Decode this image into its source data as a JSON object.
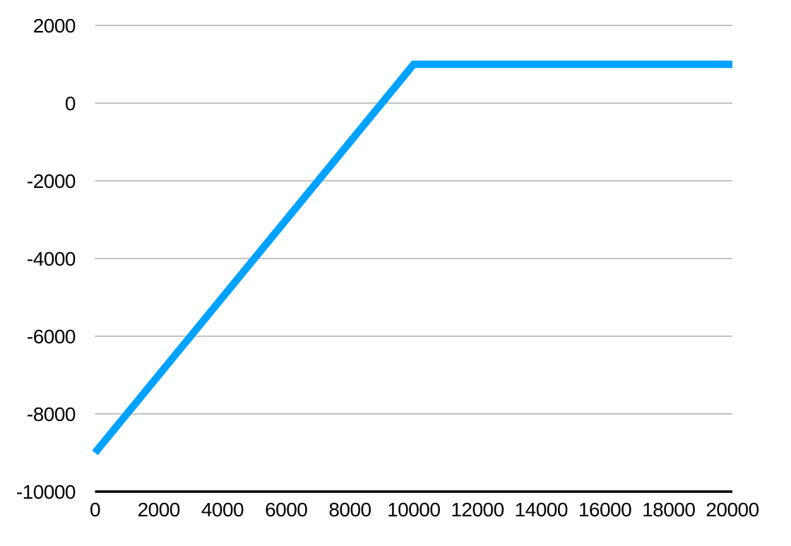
{
  "chart_data": {
    "type": "line",
    "title": "",
    "xlabel": "",
    "ylabel": "",
    "legend_position": "none",
    "grid": "horizontal-only",
    "xlim": [
      0,
      20000
    ],
    "ylim": [
      -10000,
      2000
    ],
    "x_ticks": [
      0,
      2000,
      4000,
      6000,
      8000,
      10000,
      12000,
      14000,
      16000,
      18000,
      20000
    ],
    "y_ticks": [
      2000,
      0,
      -2000,
      -4000,
      -6000,
      -8000,
      -10000
    ],
    "series": [
      {
        "name": "series-1",
        "x": [
          0,
          10000,
          20000
        ],
        "y": [
          -9000,
          1000,
          1000
        ],
        "color": "#00a2ff",
        "line_width": 10.5
      }
    ],
    "colors": {
      "background": "#ffffff",
      "gridline": "#c3c3c3",
      "axis_line": "#000000",
      "tick_label": "#000000"
    }
  }
}
